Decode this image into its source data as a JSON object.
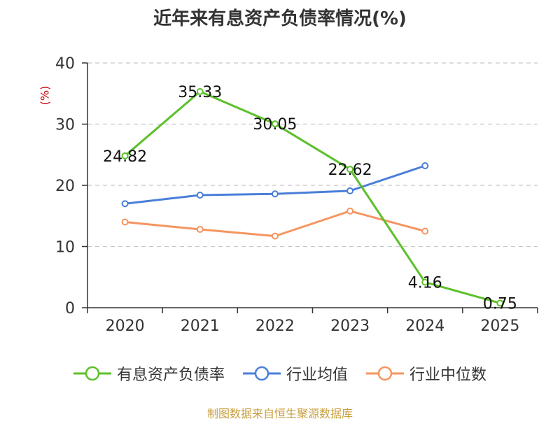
{
  "chart_data": {
    "type": "line",
    "title": "近年来有息资产负债率情况(%)",
    "ylabel": "(%)",
    "xlabel": "",
    "categories": [
      "2020",
      "2021",
      "2022",
      "2023",
      "2024",
      "2025"
    ],
    "ylim": [
      0,
      40
    ],
    "yticks": [
      0,
      10,
      20,
      30,
      40
    ],
    "grid": true,
    "legend_position": "bottom",
    "series": [
      {
        "name": "有息资产负债率",
        "color": "#5cc02a",
        "values": [
          24.82,
          35.33,
          30.05,
          22.62,
          4.16,
          0.75
        ],
        "labels": [
          "24.82",
          "35.33",
          "30.05",
          "22.62",
          "4.16",
          "0.75"
        ]
      },
      {
        "name": "行业均值",
        "color": "#4a7fd8",
        "values": [
          17.0,
          18.4,
          18.6,
          19.1,
          23.2,
          null
        ]
      },
      {
        "name": "行业中位数",
        "color": "#f59560",
        "values": [
          14.0,
          12.8,
          11.7,
          15.8,
          12.5,
          null
        ]
      }
    ]
  },
  "source": "制图数据来自恒生聚源数据库"
}
